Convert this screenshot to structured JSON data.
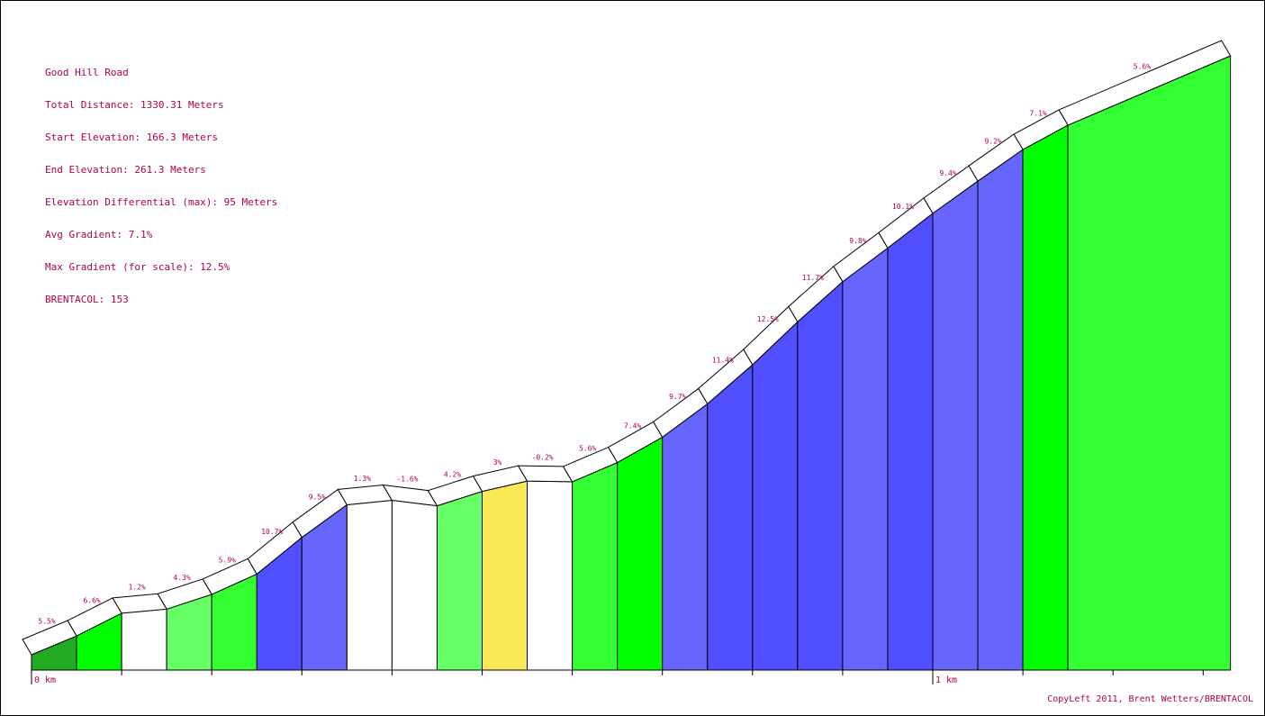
{
  "info": {
    "name": "Good Hill Road",
    "total_distance": "Total Distance: 1330.31 Meters",
    "start_elevation": "Start Elevation: 166.3 Meters",
    "end_elevation": "End Elevation: 261.3 Meters",
    "elevation_differential": "Elevation Differential (max): 95 Meters",
    "avg_gradient": "Avg Gradient: 7.1%",
    "max_gradient": "Max Gradient (for scale): 12.5%",
    "brentacol": "BRENTACOL: 153"
  },
  "footer": {
    "copyleft": "CopyLeft 2011, Brent Wetters/BRENTACOL"
  },
  "chart_data": {
    "type": "area",
    "title": "Good Hill Road",
    "xlabel": "",
    "ylabel": "",
    "x_tick_labels": [
      "0 km",
      "1 km"
    ],
    "xlim_m": [
      0,
      1330.31
    ],
    "start_elevation_m": 166.3,
    "end_elevation_m": 261.3,
    "grid": false,
    "legend": "none",
    "segment_length_m": 50,
    "segments": [
      {
        "gradient": 5.5,
        "label": "5.5%",
        "color": "#22aa22"
      },
      {
        "gradient": 6.6,
        "label": "6.6%",
        "color": "#00ff00"
      },
      {
        "gradient": 1.2,
        "label": "1.2%",
        "color": "#ffffff"
      },
      {
        "gradient": 4.3,
        "label": "4.3%",
        "color": "#66ff66"
      },
      {
        "gradient": 5.9,
        "label": "5.9%",
        "color": "#33ff33"
      },
      {
        "gradient": 10.7,
        "label": "10.7%",
        "color": "#4f4fff"
      },
      {
        "gradient": 9.5,
        "label": "9.5%",
        "color": "#6666ff"
      },
      {
        "gradient": 1.3,
        "label": "1.3%",
        "color": "#ffffff"
      },
      {
        "gradient": -1.6,
        "label": "-1.6%",
        "color": "#ffffff"
      },
      {
        "gradient": 4.2,
        "label": "4.2%",
        "color": "#66ff66"
      },
      {
        "gradient": 3,
        "label": "3%",
        "color": "#f9ea55"
      },
      {
        "gradient": -0.2,
        "label": "-0.2%",
        "color": "#ffffff"
      },
      {
        "gradient": 5.6,
        "label": "5.6%",
        "color": "#33ff33"
      },
      {
        "gradient": 7.4,
        "label": "7.4%",
        "color": "#00ff00"
      },
      {
        "gradient": 9.7,
        "label": "9.7%",
        "color": "#6666ff"
      },
      {
        "gradient": 11.4,
        "label": "11.4%",
        "color": "#4f4fff"
      },
      {
        "gradient": 12.5,
        "label": "12.5%",
        "color": "#4f4fff"
      },
      {
        "gradient": 11.7,
        "label": "11.7%",
        "color": "#4f4fff"
      },
      {
        "gradient": 9.8,
        "label": "9.8%",
        "color": "#6666ff"
      },
      {
        "gradient": 10.1,
        "label": "10.1%",
        "color": "#4f4fff"
      },
      {
        "gradient": 9.4,
        "label": "9.4%",
        "color": "#6666ff"
      },
      {
        "gradient": 9.2,
        "label": "9.2%",
        "color": "#6666ff"
      },
      {
        "gradient": 7.1,
        "label": "7.1%",
        "color": "#00ff00"
      },
      {
        "gradient": 5.6,
        "label": "5.6%",
        "color": "#33ff33"
      }
    ]
  }
}
